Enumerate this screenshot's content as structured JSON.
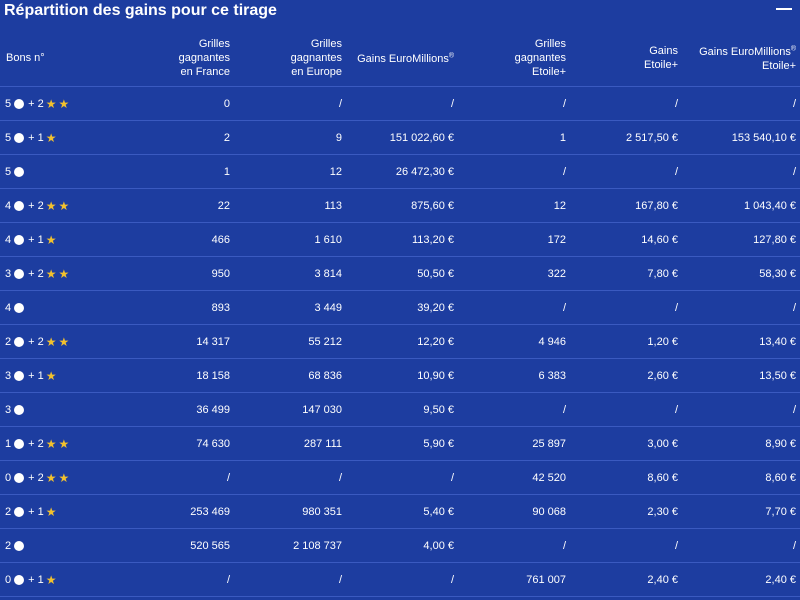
{
  "title": "Répartition des gains pour ce tirage",
  "headers": [
    [
      "Bons n°"
    ],
    [
      "Grilles",
      "gagnantes",
      "en France"
    ],
    [
      "Grilles",
      "gagnantes",
      "en Europe"
    ],
    [
      "Gains EuroMillions®"
    ],
    [
      "Grilles",
      "gagnantes",
      "Etoile+"
    ],
    [
      "Gains",
      "Etoile+"
    ],
    [
      "Gains EuroMillions®",
      "Etoile+"
    ]
  ],
  "rows": [
    {
      "balls": "5",
      "plus": "+ 2",
      "stars": 2,
      "france": "0",
      "europe": "/",
      "gains": "/",
      "etoile": "/",
      "gains_etoile": "/",
      "gains_total": "/"
    },
    {
      "balls": "5",
      "plus": "+ 1",
      "stars": 1,
      "france": "2",
      "europe": "9",
      "gains": "151 022,60 €",
      "etoile": "1",
      "gains_etoile": "2 517,50 €",
      "gains_total": "153 540,10 €"
    },
    {
      "balls": "5",
      "plus": "",
      "stars": 0,
      "france": "1",
      "europe": "12",
      "gains": "26 472,30 €",
      "etoile": "/",
      "gains_etoile": "/",
      "gains_total": "/"
    },
    {
      "balls": "4",
      "plus": "+ 2",
      "stars": 2,
      "france": "22",
      "europe": "113",
      "gains": "875,60 €",
      "etoile": "12",
      "gains_etoile": "167,80 €",
      "gains_total": "1 043,40 €"
    },
    {
      "balls": "4",
      "plus": "+ 1",
      "stars": 1,
      "france": "466",
      "europe": "1 610",
      "gains": "113,20 €",
      "etoile": "172",
      "gains_etoile": "14,60 €",
      "gains_total": "127,80 €"
    },
    {
      "balls": "3",
      "plus": "+ 2",
      "stars": 2,
      "france": "950",
      "europe": "3 814",
      "gains": "50,50 €",
      "etoile": "322",
      "gains_etoile": "7,80 €",
      "gains_total": "58,30 €"
    },
    {
      "balls": "4",
      "plus": "",
      "stars": 0,
      "france": "893",
      "europe": "3 449",
      "gains": "39,20 €",
      "etoile": "/",
      "gains_etoile": "/",
      "gains_total": "/"
    },
    {
      "balls": "2",
      "plus": "+ 2",
      "stars": 2,
      "france": "14 317",
      "europe": "55 212",
      "gains": "12,20 €",
      "etoile": "4 946",
      "gains_etoile": "1,20 €",
      "gains_total": "13,40 €"
    },
    {
      "balls": "3",
      "plus": "+ 1",
      "stars": 1,
      "france": "18 158",
      "europe": "68 836",
      "gains": "10,90 €",
      "etoile": "6 383",
      "gains_etoile": "2,60 €",
      "gains_total": "13,50 €"
    },
    {
      "balls": "3",
      "plus": "",
      "stars": 0,
      "france": "36 499",
      "europe": "147 030",
      "gains": "9,50 €",
      "etoile": "/",
      "gains_etoile": "/",
      "gains_total": "/"
    },
    {
      "balls": "1",
      "plus": "+ 2",
      "stars": 2,
      "france": "74 630",
      "europe": "287 111",
      "gains": "5,90 €",
      "etoile": "25 897",
      "gains_etoile": "3,00 €",
      "gains_total": "8,90 €"
    },
    {
      "balls": "0",
      "plus": "+ 2",
      "stars": 2,
      "france": "/",
      "europe": "/",
      "gains": "/",
      "etoile": "42 520",
      "gains_etoile": "8,60 €",
      "gains_total": "8,60 €"
    },
    {
      "balls": "2",
      "plus": "+ 1",
      "stars": 1,
      "france": "253 469",
      "europe": "980 351",
      "gains": "5,40 €",
      "etoile": "90 068",
      "gains_etoile": "2,30 €",
      "gains_total": "7,70 €"
    },
    {
      "balls": "2",
      "plus": "",
      "stars": 0,
      "france": "520 565",
      "europe": "2 108 737",
      "gains": "4,00 €",
      "etoile": "/",
      "gains_etoile": "/",
      "gains_total": "/"
    },
    {
      "balls": "0",
      "plus": "+ 1",
      "stars": 1,
      "france": "/",
      "europe": "/",
      "gains": "/",
      "etoile": "761 007",
      "gains_etoile": "2,40 €",
      "gains_total": "2,40 €"
    }
  ],
  "icons": {
    "ball": "ball-icon",
    "star": "star-icon",
    "minimize": "minimize-icon"
  },
  "colors": {
    "background": "#1d3da0",
    "star": "#f2c12e",
    "text": "#ffffff",
    "divider": "#3a5ac0"
  }
}
